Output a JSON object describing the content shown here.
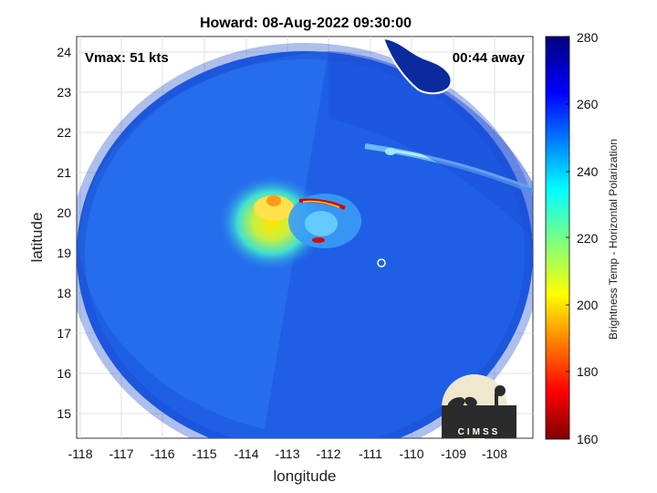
{
  "title": "Howard: 08-Aug-2022 09:30:00",
  "annotations": {
    "vmax": "Vmax: 51 kts",
    "time_away": "00:44 away"
  },
  "x_axis": {
    "label": "longitude",
    "ticks": [
      "-118",
      "-117",
      "-116",
      "-115",
      "-114",
      "-113",
      "-112",
      "-111",
      "-110",
      "-109",
      "-108"
    ]
  },
  "y_axis": {
    "label": "latitude",
    "ticks": [
      "24",
      "23",
      "22",
      "21",
      "20",
      "19",
      "18",
      "17",
      "16",
      "15"
    ]
  },
  "colorbar": {
    "label": "Brightness Temp - Horizontal Polarization",
    "ticks": [
      "280",
      "260",
      "240",
      "220",
      "200",
      "180",
      "160"
    ],
    "colormap": "jet"
  },
  "logo": {
    "text": "CIMSS"
  },
  "colors": {
    "background_swath": "#1f5fe6",
    "land_outline": "#ffffff",
    "coast_fill": "#0b2a9e"
  }
}
